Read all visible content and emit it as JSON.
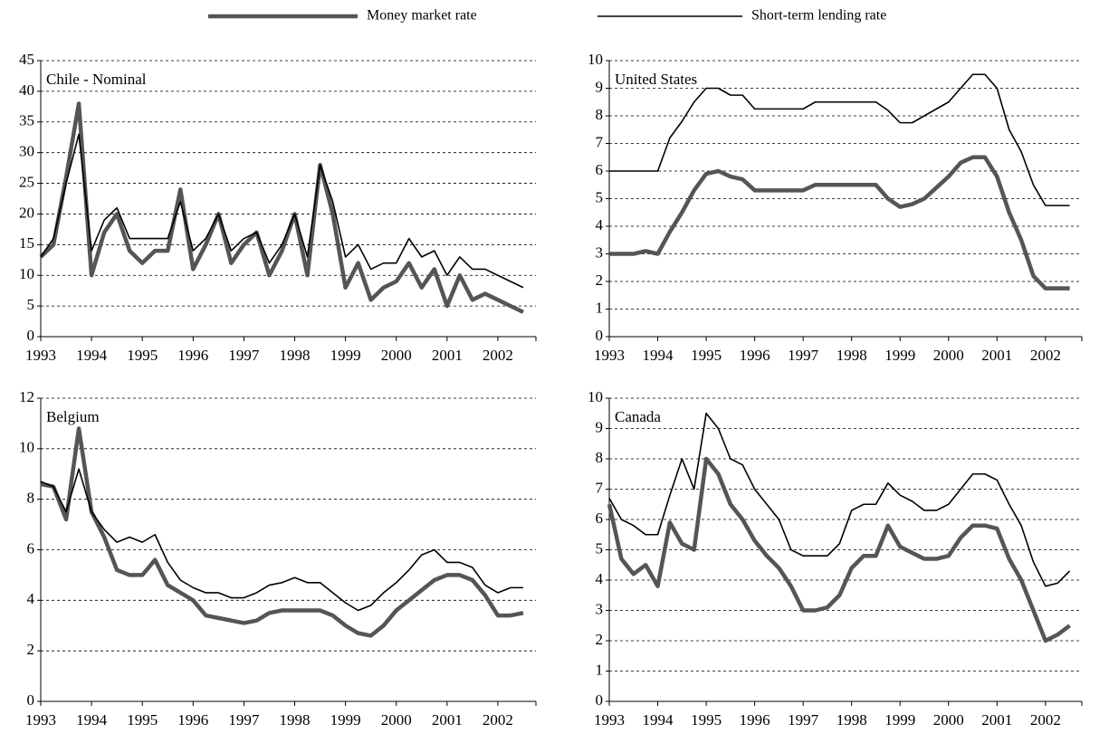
{
  "legend": [
    {
      "name": "Money market rate",
      "color": "#555555"
    },
    {
      "name": "Short-term lending rate",
      "color": "#000000"
    }
  ],
  "chart_data": [
    {
      "type": "line",
      "title": "Chile - Nominal",
      "x": [
        1993,
        1993.25,
        1993.5,
        1993.75,
        1994,
        1994.25,
        1994.5,
        1994.75,
        1995,
        1995.25,
        1995.5,
        1995.75,
        1996,
        1996.25,
        1996.5,
        1996.75,
        1997,
        1997.25,
        1997.5,
        1997.75,
        1998,
        1998.25,
        1998.5,
        1998.75,
        1999,
        1999.25,
        1999.5,
        1999.75,
        2000,
        2000.25,
        2000.5,
        2000.75,
        2001,
        2001.25,
        2001.5,
        2001.75,
        2002,
        2002.25,
        2002.5
      ],
      "series": [
        {
          "color": "#555555",
          "values": [
            13,
            15,
            26,
            38,
            10,
            17,
            20,
            14,
            12,
            14,
            14,
            24,
            11,
            15,
            20,
            12,
            15,
            17,
            10,
            14,
            20,
            10,
            28,
            20,
            8,
            12,
            6,
            8,
            9,
            12,
            8,
            11,
            5,
            10,
            6,
            7,
            6,
            5,
            4
          ]
        },
        {
          "color": "#000000",
          "values": [
            13,
            16,
            25,
            33,
            14,
            19,
            21,
            16,
            16,
            16,
            16,
            22,
            14,
            16,
            20,
            14,
            16,
            17,
            12,
            15,
            20,
            13,
            28,
            22,
            13,
            15,
            11,
            12,
            12,
            16,
            13,
            14,
            10,
            13,
            11,
            11,
            10,
            9,
            8
          ]
        }
      ],
      "xlim": [
        1993,
        2002.75
      ],
      "xticks": [
        1993,
        1994,
        1995,
        1996,
        1997,
        1998,
        1999,
        2000,
        2001,
        2002
      ],
      "ylim": [
        0,
        45
      ],
      "yticks": [
        0,
        5,
        10,
        15,
        20,
        25,
        30,
        35,
        40,
        45
      ],
      "grid": true
    },
    {
      "type": "line",
      "title": "United States",
      "x": [
        1993,
        1993.25,
        1993.5,
        1993.75,
        1994,
        1994.25,
        1994.5,
        1994.75,
        1995,
        1995.25,
        1995.5,
        1995.75,
        1996,
        1996.25,
        1996.5,
        1996.75,
        1997,
        1997.25,
        1997.5,
        1997.75,
        1998,
        1998.25,
        1998.5,
        1998.75,
        1999,
        1999.25,
        1999.5,
        1999.75,
        2000,
        2000.25,
        2000.5,
        2000.75,
        2001,
        2001.25,
        2001.5,
        2001.75,
        2002,
        2002.25,
        2002.5
      ],
      "series": [
        {
          "color": "#555555",
          "values": [
            3,
            3,
            3,
            3.1,
            3,
            3.8,
            4.5,
            5.3,
            5.9,
            6,
            5.8,
            5.7,
            5.3,
            5.3,
            5.3,
            5.3,
            5.3,
            5.5,
            5.5,
            5.5,
            5.5,
            5.5,
            5.5,
            5,
            4.7,
            4.8,
            5,
            5.4,
            5.8,
            6.3,
            6.5,
            6.5,
            5.8,
            4.5,
            3.5,
            2.2,
            1.75,
            1.75,
            1.75
          ]
        },
        {
          "color": "#000000",
          "values": [
            6,
            6,
            6,
            6,
            6,
            7.2,
            7.8,
            8.5,
            9,
            9,
            8.75,
            8.75,
            8.25,
            8.25,
            8.25,
            8.25,
            8.25,
            8.5,
            8.5,
            8.5,
            8.5,
            8.5,
            8.5,
            8.2,
            7.75,
            7.75,
            8,
            8.25,
            8.5,
            9,
            9.5,
            9.5,
            9,
            7.5,
            6.7,
            5.5,
            4.75,
            4.75,
            4.75
          ]
        }
      ],
      "xlim": [
        1993,
        2002.75
      ],
      "xticks": [
        1993,
        1994,
        1995,
        1996,
        1997,
        1998,
        1999,
        2000,
        2001,
        2002
      ],
      "ylim": [
        0,
        10
      ],
      "yticks": [
        0,
        1,
        2,
        3,
        4,
        5,
        6,
        7,
        8,
        9,
        10
      ],
      "grid": true
    },
    {
      "type": "line",
      "title": "Belgium",
      "x": [
        1993,
        1993.25,
        1993.5,
        1993.75,
        1994,
        1994.25,
        1994.5,
        1994.75,
        1995,
        1995.25,
        1995.5,
        1995.75,
        1996,
        1996.25,
        1996.5,
        1996.75,
        1997,
        1997.25,
        1997.5,
        1997.75,
        1998,
        1998.25,
        1998.5,
        1998.75,
        1999,
        1999.25,
        1999.5,
        1999.75,
        2000,
        2000.25,
        2000.5,
        2000.75,
        2001,
        2001.25,
        2001.5,
        2001.75,
        2002,
        2002.25,
        2002.5
      ],
      "series": [
        {
          "color": "#555555",
          "values": [
            8.6,
            8.5,
            7.2,
            10.8,
            7.5,
            6.5,
            5.2,
            5,
            5,
            5.6,
            4.6,
            4.3,
            4,
            3.4,
            3.3,
            3.2,
            3.1,
            3.2,
            3.5,
            3.6,
            3.6,
            3.6,
            3.6,
            3.4,
            3,
            2.7,
            2.6,
            3,
            3.6,
            4,
            4.4,
            4.8,
            5,
            5,
            4.8,
            4.2,
            3.4,
            3.4,
            3.5
          ]
        },
        {
          "color": "#000000",
          "values": [
            8.7,
            8.5,
            7.5,
            9.2,
            7.5,
            6.8,
            6.3,
            6.5,
            6.3,
            6.6,
            5.5,
            4.8,
            4.5,
            4.3,
            4.3,
            4.1,
            4.1,
            4.3,
            4.6,
            4.7,
            4.9,
            4.7,
            4.7,
            4.3,
            3.9,
            3.6,
            3.8,
            4.3,
            4.7,
            5.2,
            5.8,
            6,
            5.5,
            5.5,
            5.3,
            4.6,
            4.3,
            4.5,
            4.5
          ]
        }
      ],
      "xlim": [
        1993,
        2002.75
      ],
      "xticks": [
        1993,
        1994,
        1995,
        1996,
        1997,
        1998,
        1999,
        2000,
        2001,
        2002
      ],
      "ylim": [
        0,
        12
      ],
      "yticks": [
        0,
        2,
        4,
        6,
        8,
        10,
        12
      ],
      "grid": true
    },
    {
      "type": "line",
      "title": "Canada",
      "x": [
        1993,
        1993.25,
        1993.5,
        1993.75,
        1994,
        1994.25,
        1994.5,
        1994.75,
        1995,
        1995.25,
        1995.5,
        1995.75,
        1996,
        1996.25,
        1996.5,
        1996.75,
        1997,
        1997.25,
        1997.5,
        1997.75,
        1998,
        1998.25,
        1998.5,
        1998.75,
        1999,
        1999.25,
        1999.5,
        1999.75,
        2000,
        2000.25,
        2000.5,
        2000.75,
        2001,
        2001.25,
        2001.5,
        2001.75,
        2002,
        2002.25,
        2002.5
      ],
      "series": [
        {
          "color": "#555555",
          "values": [
            6.5,
            4.7,
            4.2,
            4.5,
            3.8,
            5.9,
            5.2,
            5,
            8,
            7.5,
            6.5,
            6,
            5.3,
            4.8,
            4.4,
            3.8,
            3,
            3,
            3.1,
            3.5,
            4.4,
            4.8,
            4.8,
            5.8,
            5.1,
            4.9,
            4.7,
            4.7,
            4.8,
            5.4,
            5.8,
            5.8,
            5.7,
            4.7,
            4,
            3,
            2,
            2.2,
            2.5
          ]
        },
        {
          "color": "#000000",
          "values": [
            6.7,
            6,
            5.8,
            5.5,
            5.5,
            6.8,
            8,
            7,
            9.5,
            9,
            8,
            7.8,
            7,
            6.5,
            6,
            5,
            4.8,
            4.8,
            4.8,
            5.2,
            6.3,
            6.5,
            6.5,
            7.2,
            6.8,
            6.6,
            6.3,
            6.3,
            6.5,
            7,
            7.5,
            7.5,
            7.3,
            6.5,
            5.8,
            4.6,
            3.8,
            3.9,
            4.3
          ]
        }
      ],
      "xlim": [
        1993,
        2002.75
      ],
      "xticks": [
        1993,
        1994,
        1995,
        1996,
        1997,
        1998,
        1999,
        2000,
        2001,
        2002
      ],
      "ylim": [
        0,
        10
      ],
      "yticks": [
        0,
        1,
        2,
        3,
        4,
        5,
        6,
        7,
        8,
        9,
        10
      ],
      "grid": true
    }
  ]
}
